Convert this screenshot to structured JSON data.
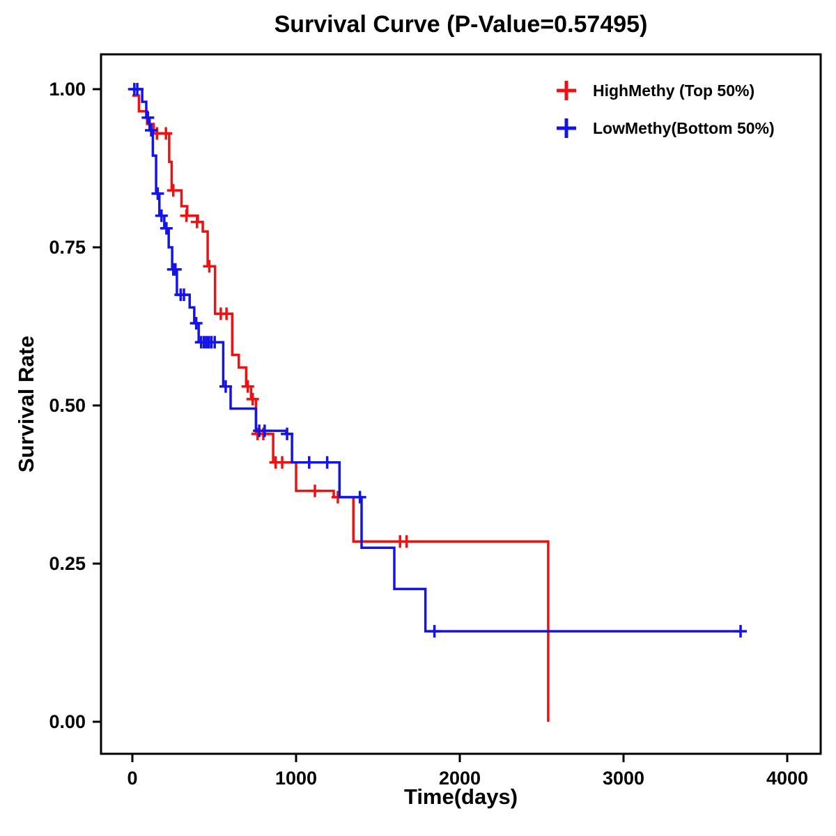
{
  "chart_data": {
    "type": "line",
    "subtype": "kaplan_meier_step_survival",
    "title": "Survival Curve (P-Value=0.57495)",
    "xlabel": "Time(days)",
    "ylabel": "Survival Rate",
    "grid": false,
    "legend_position": "top-right",
    "x_axis": {
      "min": 0,
      "max": 4000,
      "ticks": [
        0,
        1000,
        2000,
        3000,
        4000
      ],
      "tick_labels": [
        "0",
        "1000",
        "2000",
        "3000",
        "4000"
      ]
    },
    "y_axis": {
      "min": 0.0,
      "max": 1.0,
      "ticks": [
        0,
        0.25,
        0.5,
        0.75,
        1
      ],
      "tick_labels": [
        "0.00",
        "0.25",
        "0.50",
        "0.75",
        "1.00"
      ]
    },
    "series": [
      {
        "name": "HighMethy (Top 50%)",
        "color": "#EE1111",
        "steps": [
          [
            0,
            0.99
          ],
          [
            40,
            0.965
          ],
          [
            90,
            0.945
          ],
          [
            130,
            0.93
          ],
          [
            225,
            0.885
          ],
          [
            240,
            0.84
          ],
          [
            300,
            0.815
          ],
          [
            335,
            0.8
          ],
          [
            400,
            0.79
          ],
          [
            430,
            0.775
          ],
          [
            460,
            0.72
          ],
          [
            505,
            0.645
          ],
          [
            610,
            0.58
          ],
          [
            650,
            0.56
          ],
          [
            695,
            0.53
          ],
          [
            725,
            0.51
          ],
          [
            755,
            0.455
          ],
          [
            860,
            0.41
          ],
          [
            1000,
            0.365
          ],
          [
            1230,
            0.355
          ],
          [
            1350,
            0.285
          ],
          [
            2540,
            0.0
          ]
        ],
        "censor_marks": [
          [
            150,
            0.93
          ],
          [
            205,
            0.93
          ],
          [
            250,
            0.84
          ],
          [
            330,
            0.8
          ],
          [
            395,
            0.79
          ],
          [
            470,
            0.72
          ],
          [
            540,
            0.645
          ],
          [
            575,
            0.645
          ],
          [
            705,
            0.53
          ],
          [
            735,
            0.51
          ],
          [
            765,
            0.455
          ],
          [
            800,
            0.455
          ],
          [
            875,
            0.41
          ],
          [
            915,
            0.41
          ],
          [
            1115,
            0.365
          ],
          [
            1255,
            0.355
          ],
          [
            1635,
            0.285
          ],
          [
            1675,
            0.285
          ]
        ]
      },
      {
        "name": "LowMethy(Bottom 50%)",
        "color": "#1414E8",
        "steps": [
          [
            0,
            1.0
          ],
          [
            60,
            0.98
          ],
          [
            85,
            0.955
          ],
          [
            105,
            0.935
          ],
          [
            125,
            0.895
          ],
          [
            145,
            0.835
          ],
          [
            165,
            0.8
          ],
          [
            195,
            0.78
          ],
          [
            222,
            0.75
          ],
          [
            243,
            0.715
          ],
          [
            272,
            0.675
          ],
          [
            350,
            0.655
          ],
          [
            378,
            0.63
          ],
          [
            405,
            0.6
          ],
          [
            555,
            0.53
          ],
          [
            600,
            0.495
          ],
          [
            755,
            0.46
          ],
          [
            940,
            0.455
          ],
          [
            975,
            0.41
          ],
          [
            1265,
            0.355
          ],
          [
            1400,
            0.275
          ],
          [
            1600,
            0.21
          ],
          [
            1790,
            0.143
          ],
          [
            3720,
            0.143
          ]
        ],
        "censor_marks": [
          [
            12,
            1.0
          ],
          [
            30,
            1.0
          ],
          [
            95,
            0.955
          ],
          [
            115,
            0.935
          ],
          [
            155,
            0.835
          ],
          [
            178,
            0.8
          ],
          [
            208,
            0.78
          ],
          [
            250,
            0.715
          ],
          [
            263,
            0.715
          ],
          [
            295,
            0.675
          ],
          [
            315,
            0.675
          ],
          [
            390,
            0.63
          ],
          [
            420,
            0.6
          ],
          [
            437,
            0.6
          ],
          [
            452,
            0.6
          ],
          [
            467,
            0.6
          ],
          [
            483,
            0.6
          ],
          [
            503,
            0.6
          ],
          [
            570,
            0.53
          ],
          [
            775,
            0.46
          ],
          [
            808,
            0.46
          ],
          [
            945,
            0.455
          ],
          [
            1080,
            0.41
          ],
          [
            1190,
            0.41
          ],
          [
            1390,
            0.355
          ],
          [
            1845,
            0.143
          ],
          [
            3715,
            0.143
          ]
        ]
      }
    ]
  }
}
